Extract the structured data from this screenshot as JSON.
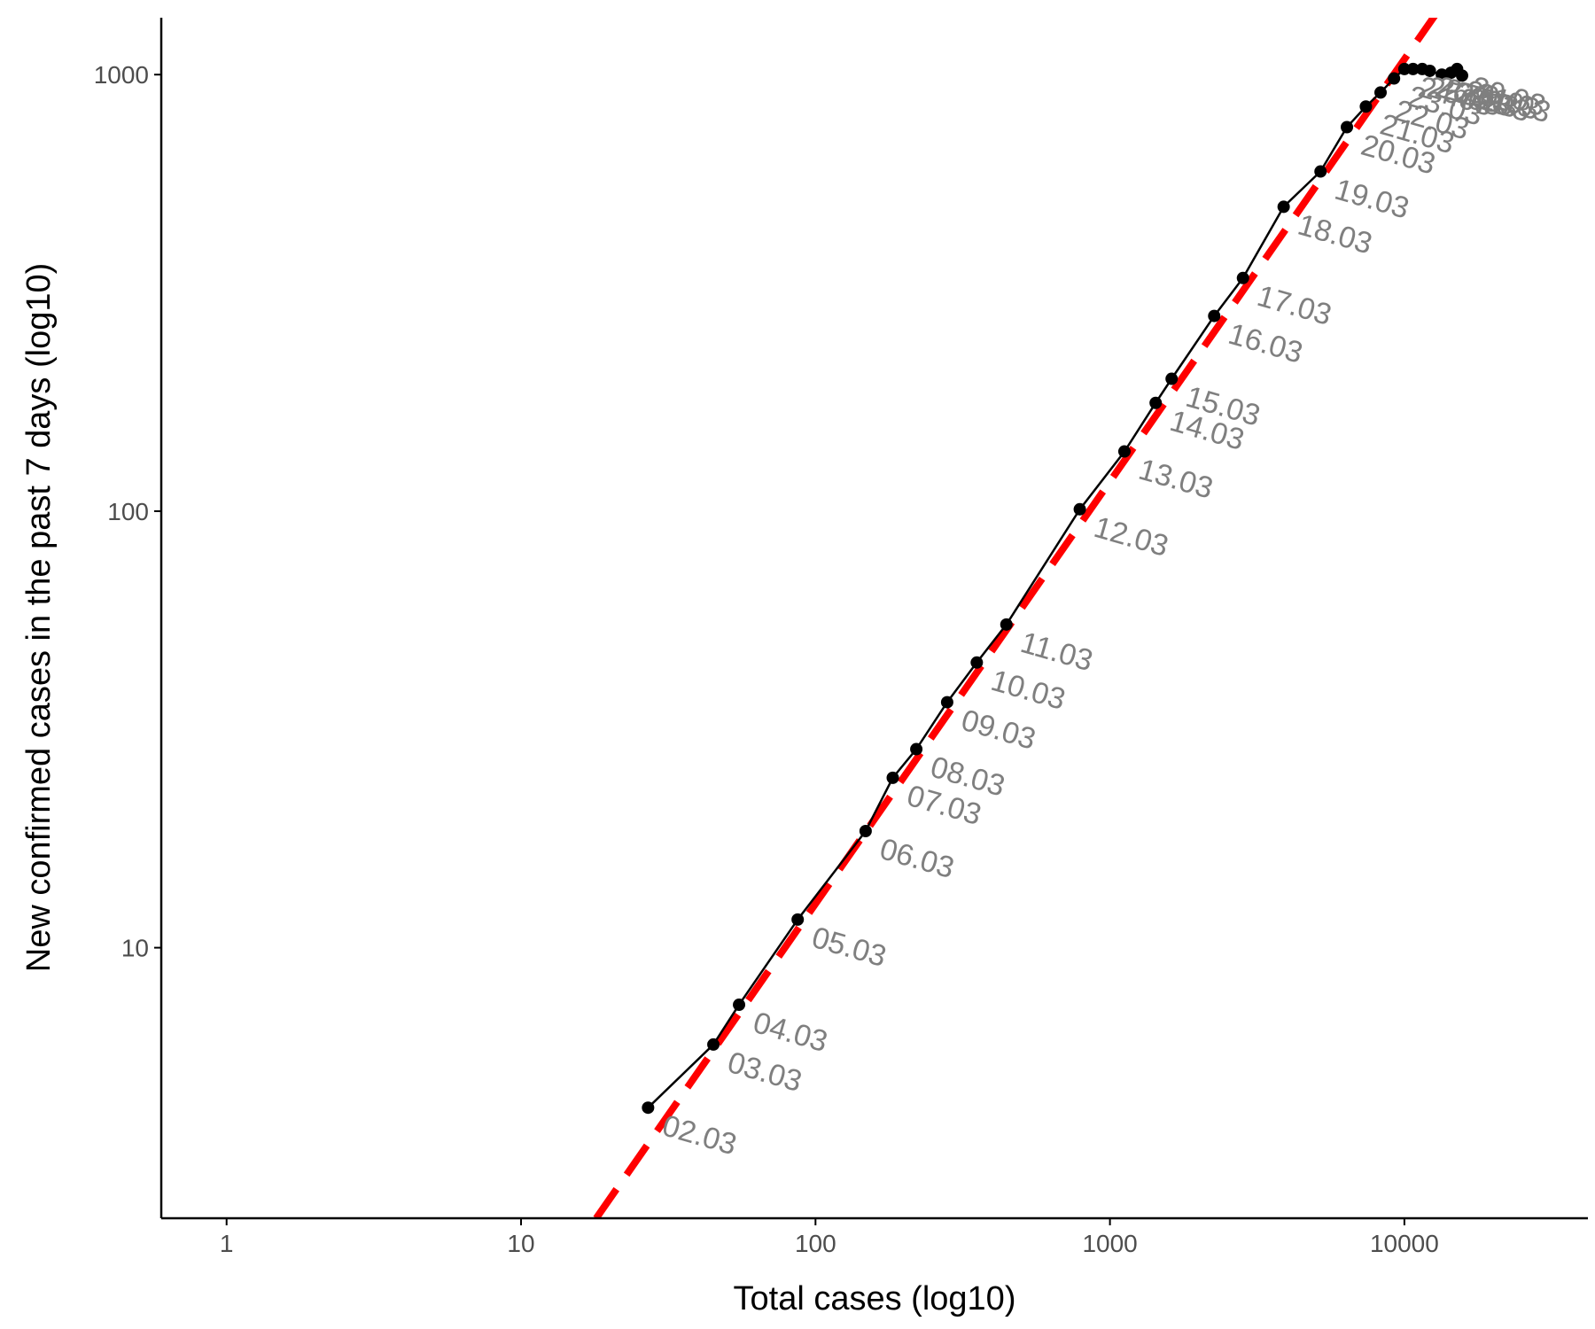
{
  "chart_data": {
    "type": "scatter",
    "title": "",
    "xlabel": "Total cases (log10)",
    "ylabel": "New confirmed cases in the past 7 days (log10)",
    "x_scale": "log10",
    "y_scale": "log10",
    "xlim": [
      0.6,
      42000
    ],
    "ylim": [
      2.4,
      1350
    ],
    "x_ticks": [
      1,
      10,
      100,
      1000,
      10000
    ],
    "x_tick_labels": [
      "1",
      "10",
      "100",
      "1000",
      "10000"
    ],
    "y_ticks": [
      10,
      100,
      1000
    ],
    "y_tick_labels": [
      "10",
      "100",
      "1000"
    ],
    "grid": false,
    "legend": "none",
    "colors": {
      "line": "#000000",
      "points": "#000000",
      "reference": "#ff0000",
      "labels": "#7f7f7f",
      "axis": "#000000",
      "tick_labels": "#4d4d4d"
    },
    "reference_line": {
      "style": "dashed",
      "slope_log": 1,
      "x": [
        18,
        13500
      ],
      "y": [
        2.4,
        1450
      ]
    },
    "series": [
      {
        "x": [
          27,
          45,
          55,
          87,
          148,
          183,
          220,
          280,
          353,
          445,
          790,
          1120,
          1430,
          1620,
          2260,
          2830,
          3890,
          5190,
          6380,
          7400,
          8300,
          9220,
          10000,
          10700,
          11500,
          12200,
          13400,
          14400,
          15100,
          15700
        ],
        "y": [
          4.3,
          6.0,
          7.4,
          11.6,
          18.5,
          24.5,
          28.5,
          36.5,
          45.0,
          55.0,
          101,
          137,
          177,
          201,
          280,
          342,
          498,
          600,
          758,
          845,
          910,
          980,
          1030,
          1030,
          1030,
          1020,
          1000,
          1010,
          1030,
          995
        ],
        "labels": [
          "02.03",
          "03.03",
          "04.03",
          "05.03",
          "06.03",
          "07.03",
          "08.03",
          "09.03",
          "10.03",
          "11.03",
          "12.03",
          "13.03",
          "14.03",
          "15.03",
          "16.03",
          "17.03",
          "18.03",
          "19.03",
          "20.03",
          "21.03",
          "22.03",
          "23.03",
          "24.03",
          "25.03",
          "26.03",
          "27.03",
          "28.03",
          "29.03",
          "30.03",
          "31.03"
        ]
      }
    ]
  }
}
